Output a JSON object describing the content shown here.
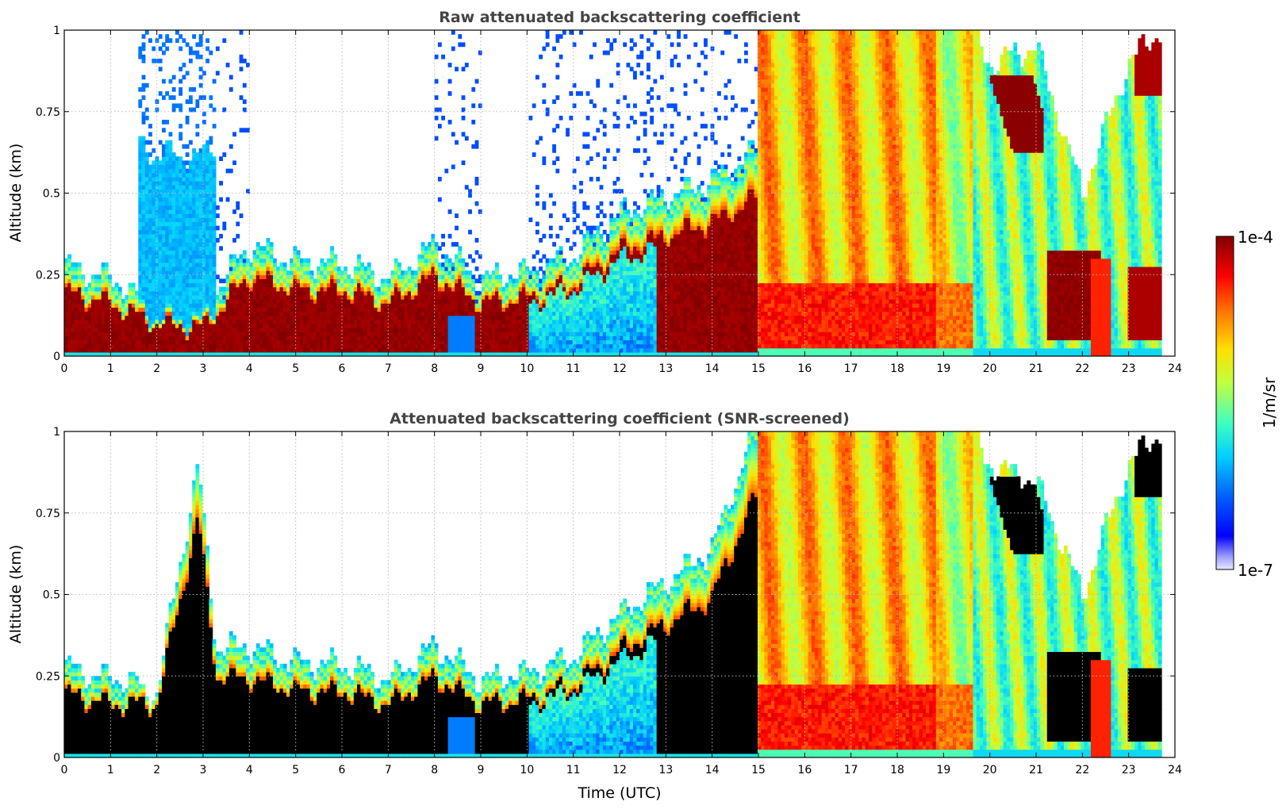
{
  "colors": {
    "colormap": "jet",
    "screened_saturation": "#000000",
    "raw_saturation": "#800000",
    "background": "#ffffff"
  },
  "x_ticks": [
    "0",
    "1",
    "2",
    "3",
    "4",
    "5",
    "6",
    "7",
    "8",
    "9",
    "10",
    "11",
    "12",
    "13",
    "14",
    "15",
    "16",
    "17",
    "18",
    "19",
    "20",
    "21",
    "22",
    "23",
    "24"
  ],
  "y_ticks": [
    "0",
    "0.25",
    "0.5",
    "0.75",
    "1"
  ],
  "x_label": "Time (UTC)",
  "colorbar": {
    "max_label": "1e-4",
    "min_label": "1e-7",
    "unit_label": "1/m/sr",
    "scale": "log"
  },
  "chart_data": [
    {
      "type": "heatmap",
      "title": "Raw attenuated backscattering coefficient",
      "xlabel": "",
      "ylabel": "Altitude (km)",
      "xlim": [
        0,
        24
      ],
      "ylim": [
        0,
        1
      ],
      "grid": true,
      "data_end_hour": 23.7,
      "value_scale": "log10 of 1/m/sr, clim [1e-7, 1e-4]",
      "boundary_layer_top_km": [
        [
          0,
          0.24
        ],
        [
          1,
          0.2
        ],
        [
          2,
          0.12
        ],
        [
          3,
          0.11
        ],
        [
          4,
          0.3
        ],
        [
          5,
          0.25
        ],
        [
          6,
          0.25
        ],
        [
          7,
          0.2
        ],
        [
          8,
          0.3
        ],
        [
          9,
          0.2
        ],
        [
          10,
          0.22
        ],
        [
          11,
          0.27
        ],
        [
          12,
          0.4
        ],
        [
          13,
          0.45
        ],
        [
          14,
          0.5
        ],
        [
          15,
          0.6
        ],
        [
          16,
          1.0
        ],
        [
          19.5,
          1.0
        ],
        [
          20,
          0.9
        ],
        [
          21,
          0.95
        ],
        [
          22,
          0.5
        ],
        [
          23,
          0.9
        ],
        [
          23.7,
          1.0
        ]
      ],
      "notable_regions": [
        {
          "hours": [
            1.6,
            3.3
          ],
          "altitude_km": [
            0.1,
            1.0
          ],
          "description": "diffuse blue/cyan plume"
        },
        {
          "hours": [
            10,
            12.5
          ],
          "altitude_km": [
            0.0,
            0.25
          ],
          "description": "blue low-signal layer"
        },
        {
          "hours": [
            15,
            19.5
          ],
          "altitude_km": [
            0.0,
            1.0
          ],
          "description": "orange-yellow fog/precip column"
        },
        {
          "hours": [
            20,
            21.2
          ],
          "altitude_km": [
            0.65,
            0.85
          ],
          "description": "dark red cloud patches"
        },
        {
          "hours": [
            21.2,
            22.5
          ],
          "altitude_km": [
            0.05,
            0.35
          ],
          "description": "dark red layer"
        }
      ]
    },
    {
      "type": "heatmap",
      "title": "Attenuated backscattering coefficient (SNR-screened)",
      "xlabel": "Time (UTC)",
      "ylabel": "Altitude (km)",
      "xlim": [
        0,
        24
      ],
      "ylim": [
        0,
        1
      ],
      "grid": true,
      "data_end_hour": 23.7,
      "value_scale": "log10 of 1/m/sr, clim [1e-7, 1e-4], saturated values in black",
      "boundary_layer_top_km": [
        [
          0,
          0.24
        ],
        [
          1,
          0.2
        ],
        [
          2,
          0.2
        ],
        [
          2.9,
          0.9
        ],
        [
          3.3,
          0.3
        ],
        [
          4,
          0.3
        ],
        [
          5,
          0.25
        ],
        [
          6,
          0.25
        ],
        [
          7,
          0.2
        ],
        [
          8,
          0.3
        ],
        [
          9,
          0.2
        ],
        [
          10,
          0.22
        ],
        [
          11,
          0.27
        ],
        [
          12,
          0.4
        ],
        [
          13,
          0.5
        ],
        [
          14,
          0.6
        ],
        [
          15,
          1.0
        ],
        [
          19.5,
          1.0
        ],
        [
          20,
          0.9
        ],
        [
          21,
          0.85
        ],
        [
          22,
          0.5
        ],
        [
          23,
          0.9
        ],
        [
          23.7,
          1.0
        ]
      ]
    }
  ]
}
